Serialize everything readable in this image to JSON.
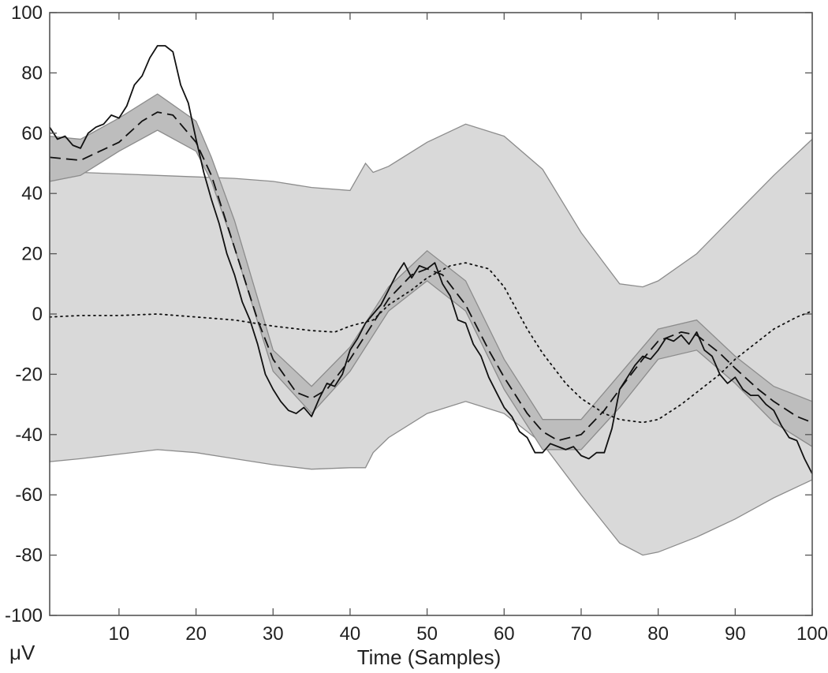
{
  "chart_data": {
    "type": "line",
    "title": "",
    "xlabel": "Time (Samples)",
    "ylabel": "μV",
    "xlim": [
      1,
      100
    ],
    "ylim": [
      -100,
      100
    ],
    "grid": false,
    "legend": "none",
    "xticks": [
      10,
      20,
      30,
      40,
      50,
      60,
      70,
      80,
      90,
      100
    ],
    "yticks": [
      100,
      80,
      60,
      40,
      20,
      0,
      -20,
      -40,
      -60,
      -80,
      -100
    ],
    "bands": [
      {
        "fill": "#d9d9d9",
        "stroke": "#8c8c8c",
        "upper": [
          [
            1,
            47
          ],
          [
            5,
            47
          ],
          [
            10,
            46.5
          ],
          [
            15,
            46
          ],
          [
            20,
            45.5
          ],
          [
            25,
            45
          ],
          [
            30,
            44
          ],
          [
            35,
            42
          ],
          [
            40,
            41
          ],
          [
            42,
            50
          ],
          [
            43,
            47
          ],
          [
            45,
            49
          ],
          [
            50,
            57
          ],
          [
            55,
            63
          ],
          [
            60,
            59
          ],
          [
            65,
            48
          ],
          [
            70,
            27
          ],
          [
            75,
            10
          ],
          [
            78,
            9
          ],
          [
            80,
            11
          ],
          [
            85,
            20
          ],
          [
            90,
            33
          ],
          [
            95,
            46
          ],
          [
            100,
            58
          ]
        ],
        "lower": [
          [
            1,
            -49
          ],
          [
            5,
            -48
          ],
          [
            10,
            -46.5
          ],
          [
            15,
            -45
          ],
          [
            20,
            -46
          ],
          [
            25,
            -48
          ],
          [
            30,
            -50
          ],
          [
            35,
            -51.5
          ],
          [
            40,
            -51
          ],
          [
            42,
            -51
          ],
          [
            43,
            -46
          ],
          [
            45,
            -41
          ],
          [
            50,
            -33
          ],
          [
            55,
            -29
          ],
          [
            60,
            -33
          ],
          [
            65,
            -43
          ],
          [
            70,
            -60
          ],
          [
            75,
            -76
          ],
          [
            78,
            -80
          ],
          [
            80,
            -79
          ],
          [
            85,
            -74
          ],
          [
            90,
            -68
          ],
          [
            95,
            -61
          ],
          [
            100,
            -55
          ]
        ]
      },
      {
        "fill": "#bdbdbd",
        "stroke": "#8c8c8c",
        "upper": [
          [
            1,
            59
          ],
          [
            5,
            58
          ],
          [
            10,
            65
          ],
          [
            15,
            73
          ],
          [
            20,
            64
          ],
          [
            22,
            52
          ],
          [
            25,
            31
          ],
          [
            30,
            -12
          ],
          [
            35,
            -24
          ],
          [
            40,
            -11
          ],
          [
            45,
            9
          ],
          [
            50,
            21
          ],
          [
            55,
            11
          ],
          [
            60,
            -15
          ],
          [
            65,
            -35
          ],
          [
            70,
            -35
          ],
          [
            75,
            -20
          ],
          [
            80,
            -5
          ],
          [
            85,
            -2
          ],
          [
            90,
            -14
          ],
          [
            95,
            -24
          ],
          [
            100,
            -29
          ]
        ],
        "lower": [
          [
            1,
            44
          ],
          [
            5,
            46
          ],
          [
            10,
            54
          ],
          [
            15,
            61
          ],
          [
            20,
            54
          ],
          [
            22,
            44
          ],
          [
            25,
            22
          ],
          [
            30,
            -19
          ],
          [
            35,
            -33
          ],
          [
            40,
            -19
          ],
          [
            45,
            1
          ],
          [
            50,
            11
          ],
          [
            55,
            1
          ],
          [
            60,
            -25
          ],
          [
            65,
            -45
          ],
          [
            70,
            -45
          ],
          [
            75,
            -31
          ],
          [
            80,
            -15
          ],
          [
            85,
            -12
          ],
          [
            90,
            -23
          ],
          [
            95,
            -36
          ],
          [
            100,
            -44
          ]
        ]
      }
    ],
    "series": [
      {
        "style": "solid",
        "x": [
          1,
          2,
          3,
          4,
          5,
          6,
          7,
          8,
          9,
          10,
          11,
          12,
          13,
          14,
          15,
          16,
          17,
          18,
          19,
          20,
          21,
          22,
          23,
          24,
          25,
          26,
          27,
          28,
          29,
          30,
          31,
          32,
          33,
          34,
          35,
          36,
          37,
          38,
          39,
          40,
          41,
          42,
          43,
          44,
          45,
          46,
          47,
          48,
          49,
          50,
          51,
          52,
          53,
          54,
          55,
          56,
          57,
          58,
          59,
          60,
          61,
          62,
          63,
          64,
          65,
          66,
          67,
          68,
          69,
          70,
          71,
          72,
          73,
          74,
          75,
          76,
          77,
          78,
          79,
          80,
          81,
          82,
          83,
          84,
          85,
          86,
          87,
          88,
          89,
          90,
          91,
          92,
          93,
          94,
          95,
          96,
          97,
          98,
          99,
          100
        ],
        "y": [
          62,
          58,
          59,
          56,
          55,
          60,
          62,
          63,
          66,
          65,
          69,
          76,
          79,
          85,
          89,
          89,
          87,
          76,
          70,
          58,
          47,
          38,
          30,
          20,
          13,
          4,
          -2,
          -10,
          -20,
          -25,
          -29,
          -32,
          -33,
          -31,
          -34,
          -28,
          -23,
          -24,
          -20,
          -12,
          -8,
          -3,
          0,
          3,
          8,
          13,
          17,
          12,
          16,
          15,
          17,
          10,
          6,
          -2,
          -3,
          -10,
          -14,
          -21,
          -26,
          -31,
          -34,
          -39,
          -41,
          -46,
          -46,
          -43,
          -44,
          -45,
          -44,
          -47,
          -48,
          -46,
          -46,
          -38,
          -25,
          -21,
          -17,
          -14,
          -15,
          -12,
          -8,
          -9,
          -7,
          -10,
          -6,
          -12,
          -14,
          -20,
          -23,
          -21,
          -25,
          -27,
          -27,
          -30,
          -32,
          -37,
          -41,
          -42,
          -48,
          -53
        ]
      },
      {
        "style": "dashed",
        "x": [
          1,
          5,
          10,
          13,
          15,
          17,
          20,
          22,
          25,
          28,
          30,
          33,
          35,
          37,
          40,
          43,
          45,
          48,
          50,
          52,
          55,
          58,
          60,
          63,
          65,
          67,
          70,
          73,
          75,
          78,
          80,
          83,
          85,
          88,
          90,
          93,
          95,
          98,
          100
        ],
        "y": [
          52,
          51,
          57,
          64,
          67,
          66,
          57,
          46,
          22,
          -2,
          -15,
          -26,
          -28,
          -25,
          -15,
          -3,
          5,
          13,
          15,
          13,
          3,
          -12,
          -21,
          -33,
          -39,
          -42,
          -40,
          -32,
          -25,
          -15,
          -9,
          -6,
          -7,
          -13,
          -18,
          -25,
          -29,
          -34,
          -36
        ]
      },
      {
        "style": "dotted",
        "x": [
          1,
          5,
          10,
          15,
          20,
          25,
          30,
          35,
          38,
          40,
          43,
          45,
          48,
          50,
          53,
          55,
          58,
          60,
          63,
          65,
          68,
          70,
          73,
          75,
          78,
          80,
          83,
          85,
          88,
          90,
          93,
          95,
          98,
          100
        ],
        "y": [
          -1,
          -0.5,
          -0.5,
          0,
          -1,
          -2,
          -4,
          -5.5,
          -6,
          -4,
          -2,
          3,
          8,
          12,
          16,
          17,
          15,
          9,
          -5,
          -13,
          -23,
          -28,
          -33,
          -35,
          -36,
          -35,
          -30,
          -26,
          -20,
          -15,
          -9,
          -5,
          -1,
          1
        ]
      }
    ]
  }
}
